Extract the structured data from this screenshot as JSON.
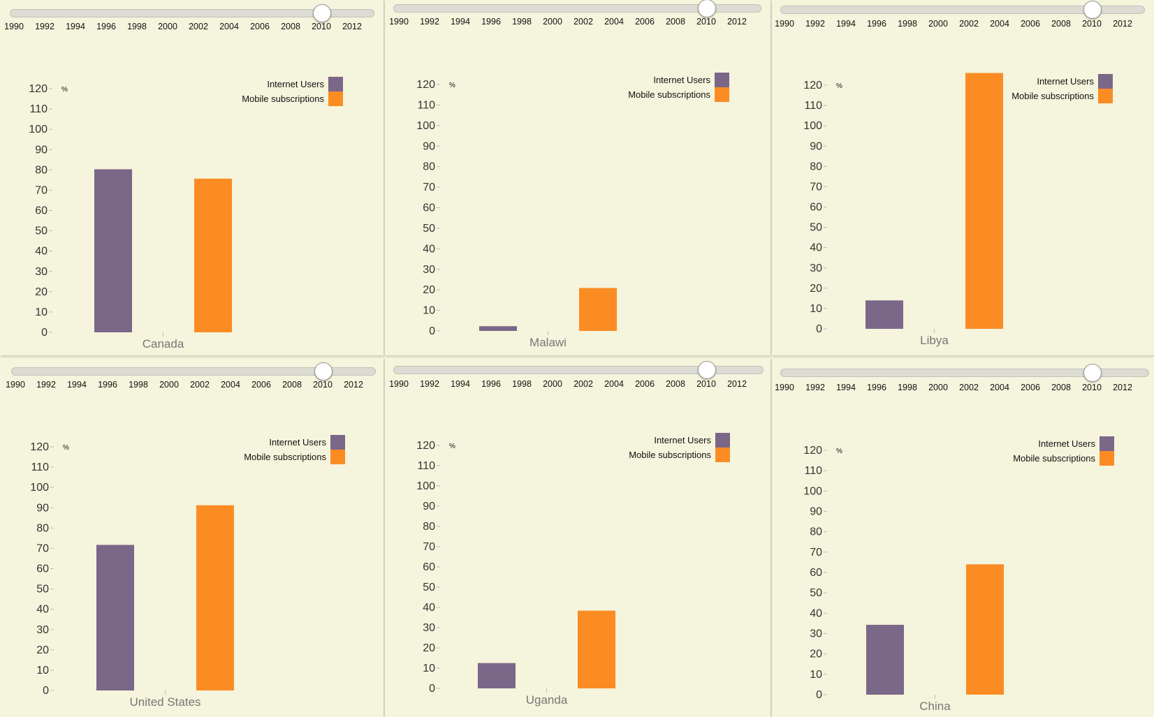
{
  "slider_years": [
    "1990",
    "1992",
    "1994",
    "1996",
    "1998",
    "2000",
    "2002",
    "2004",
    "2006",
    "2008",
    "2010",
    "2012"
  ],
  "selected_year": "2010",
  "unit": "%",
  "legend": [
    {
      "label": "Internet Users",
      "color": "#7b6788"
    },
    {
      "label": "Mobile subscriptions",
      "color": "#fb8c24"
    }
  ],
  "chart_data": [
    {
      "type": "bar",
      "title": "Canada",
      "unit": "%",
      "ylim": [
        0,
        120
      ],
      "yticks": [
        0,
        10,
        20,
        30,
        40,
        50,
        60,
        70,
        80,
        90,
        100,
        110,
        120
      ],
      "series": [
        {
          "name": "Internet Users",
          "values": [
            80.3
          ]
        },
        {
          "name": "Mobile subscriptions",
          "values": [
            75.7
          ]
        }
      ]
    },
    {
      "type": "bar",
      "title": "Malawi",
      "unit": "%",
      "ylim": [
        0,
        120
      ],
      "yticks": [
        0,
        10,
        20,
        30,
        40,
        50,
        60,
        70,
        80,
        90,
        100,
        110,
        120
      ],
      "series": [
        {
          "name": "Internet Users",
          "values": [
            2.3
          ]
        },
        {
          "name": "Mobile subscriptions",
          "values": [
            20.9
          ]
        }
      ]
    },
    {
      "type": "bar",
      "title": "Libya",
      "unit": "%",
      "ylim": [
        0,
        120
      ],
      "yticks": [
        0,
        10,
        20,
        30,
        40,
        50,
        60,
        70,
        80,
        90,
        100,
        110,
        120
      ],
      "series": [
        {
          "name": "Internet Users",
          "values": [
            14
          ]
        },
        {
          "name": "Mobile subscriptions",
          "values": [
            126
          ]
        }
      ]
    },
    {
      "type": "bar",
      "title": "United States",
      "unit": "%",
      "ylim": [
        0,
        120
      ],
      "yticks": [
        0,
        10,
        20,
        30,
        40,
        50,
        60,
        70,
        80,
        90,
        100,
        110,
        120
      ],
      "series": [
        {
          "name": "Internet Users",
          "values": [
            71.7
          ]
        },
        {
          "name": "Mobile subscriptions",
          "values": [
            91.2
          ]
        }
      ]
    },
    {
      "type": "bar",
      "title": "Uganda",
      "unit": "%",
      "ylim": [
        0,
        120
      ],
      "yticks": [
        0,
        10,
        20,
        30,
        40,
        50,
        60,
        70,
        80,
        90,
        100,
        110,
        120
      ],
      "series": [
        {
          "name": "Internet Users",
          "values": [
            12.5
          ]
        },
        {
          "name": "Mobile subscriptions",
          "values": [
            38.4
          ]
        }
      ]
    },
    {
      "type": "bar",
      "title": "China",
      "unit": "%",
      "ylim": [
        0,
        120
      ],
      "yticks": [
        0,
        10,
        20,
        30,
        40,
        50,
        60,
        70,
        80,
        90,
        100,
        110,
        120
      ],
      "series": [
        {
          "name": "Internet Users",
          "values": [
            34.3
          ]
        },
        {
          "name": "Mobile subscriptions",
          "values": [
            64.0
          ]
        }
      ]
    }
  ]
}
